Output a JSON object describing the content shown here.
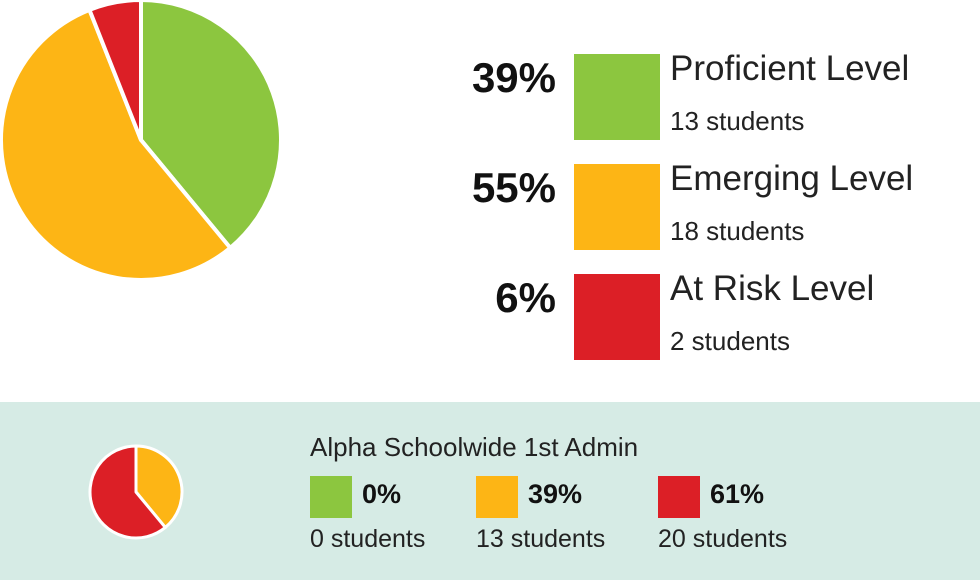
{
  "chart_data": [
    {
      "type": "pie",
      "title": "",
      "slices": [
        {
          "label": "Proficient Level",
          "percent_label": "39%",
          "value": 39,
          "count_label": "13 students",
          "color": "#8cc63f"
        },
        {
          "label": "Emerging Level",
          "percent_label": "55%",
          "value": 55,
          "count_label": "18 students",
          "color": "#fdb515"
        },
        {
          "label": "At Risk Level",
          "percent_label": "6%",
          "value": 6,
          "count_label": "2 students",
          "color": "#dc1f26"
        }
      ],
      "legend": "right"
    },
    {
      "type": "pie",
      "title": "Alpha Schoolwide 1st Admin",
      "slices": [
        {
          "percent_label": "0%",
          "value": 0,
          "count_label": "0 students",
          "color": "#8cc63f"
        },
        {
          "percent_label": "39%",
          "value": 39,
          "count_label": "13 students",
          "color": "#fdb515"
        },
        {
          "percent_label": "61%",
          "value": 61,
          "count_label": "20 students",
          "color": "#dc1f26"
        }
      ],
      "legend": "right"
    }
  ]
}
